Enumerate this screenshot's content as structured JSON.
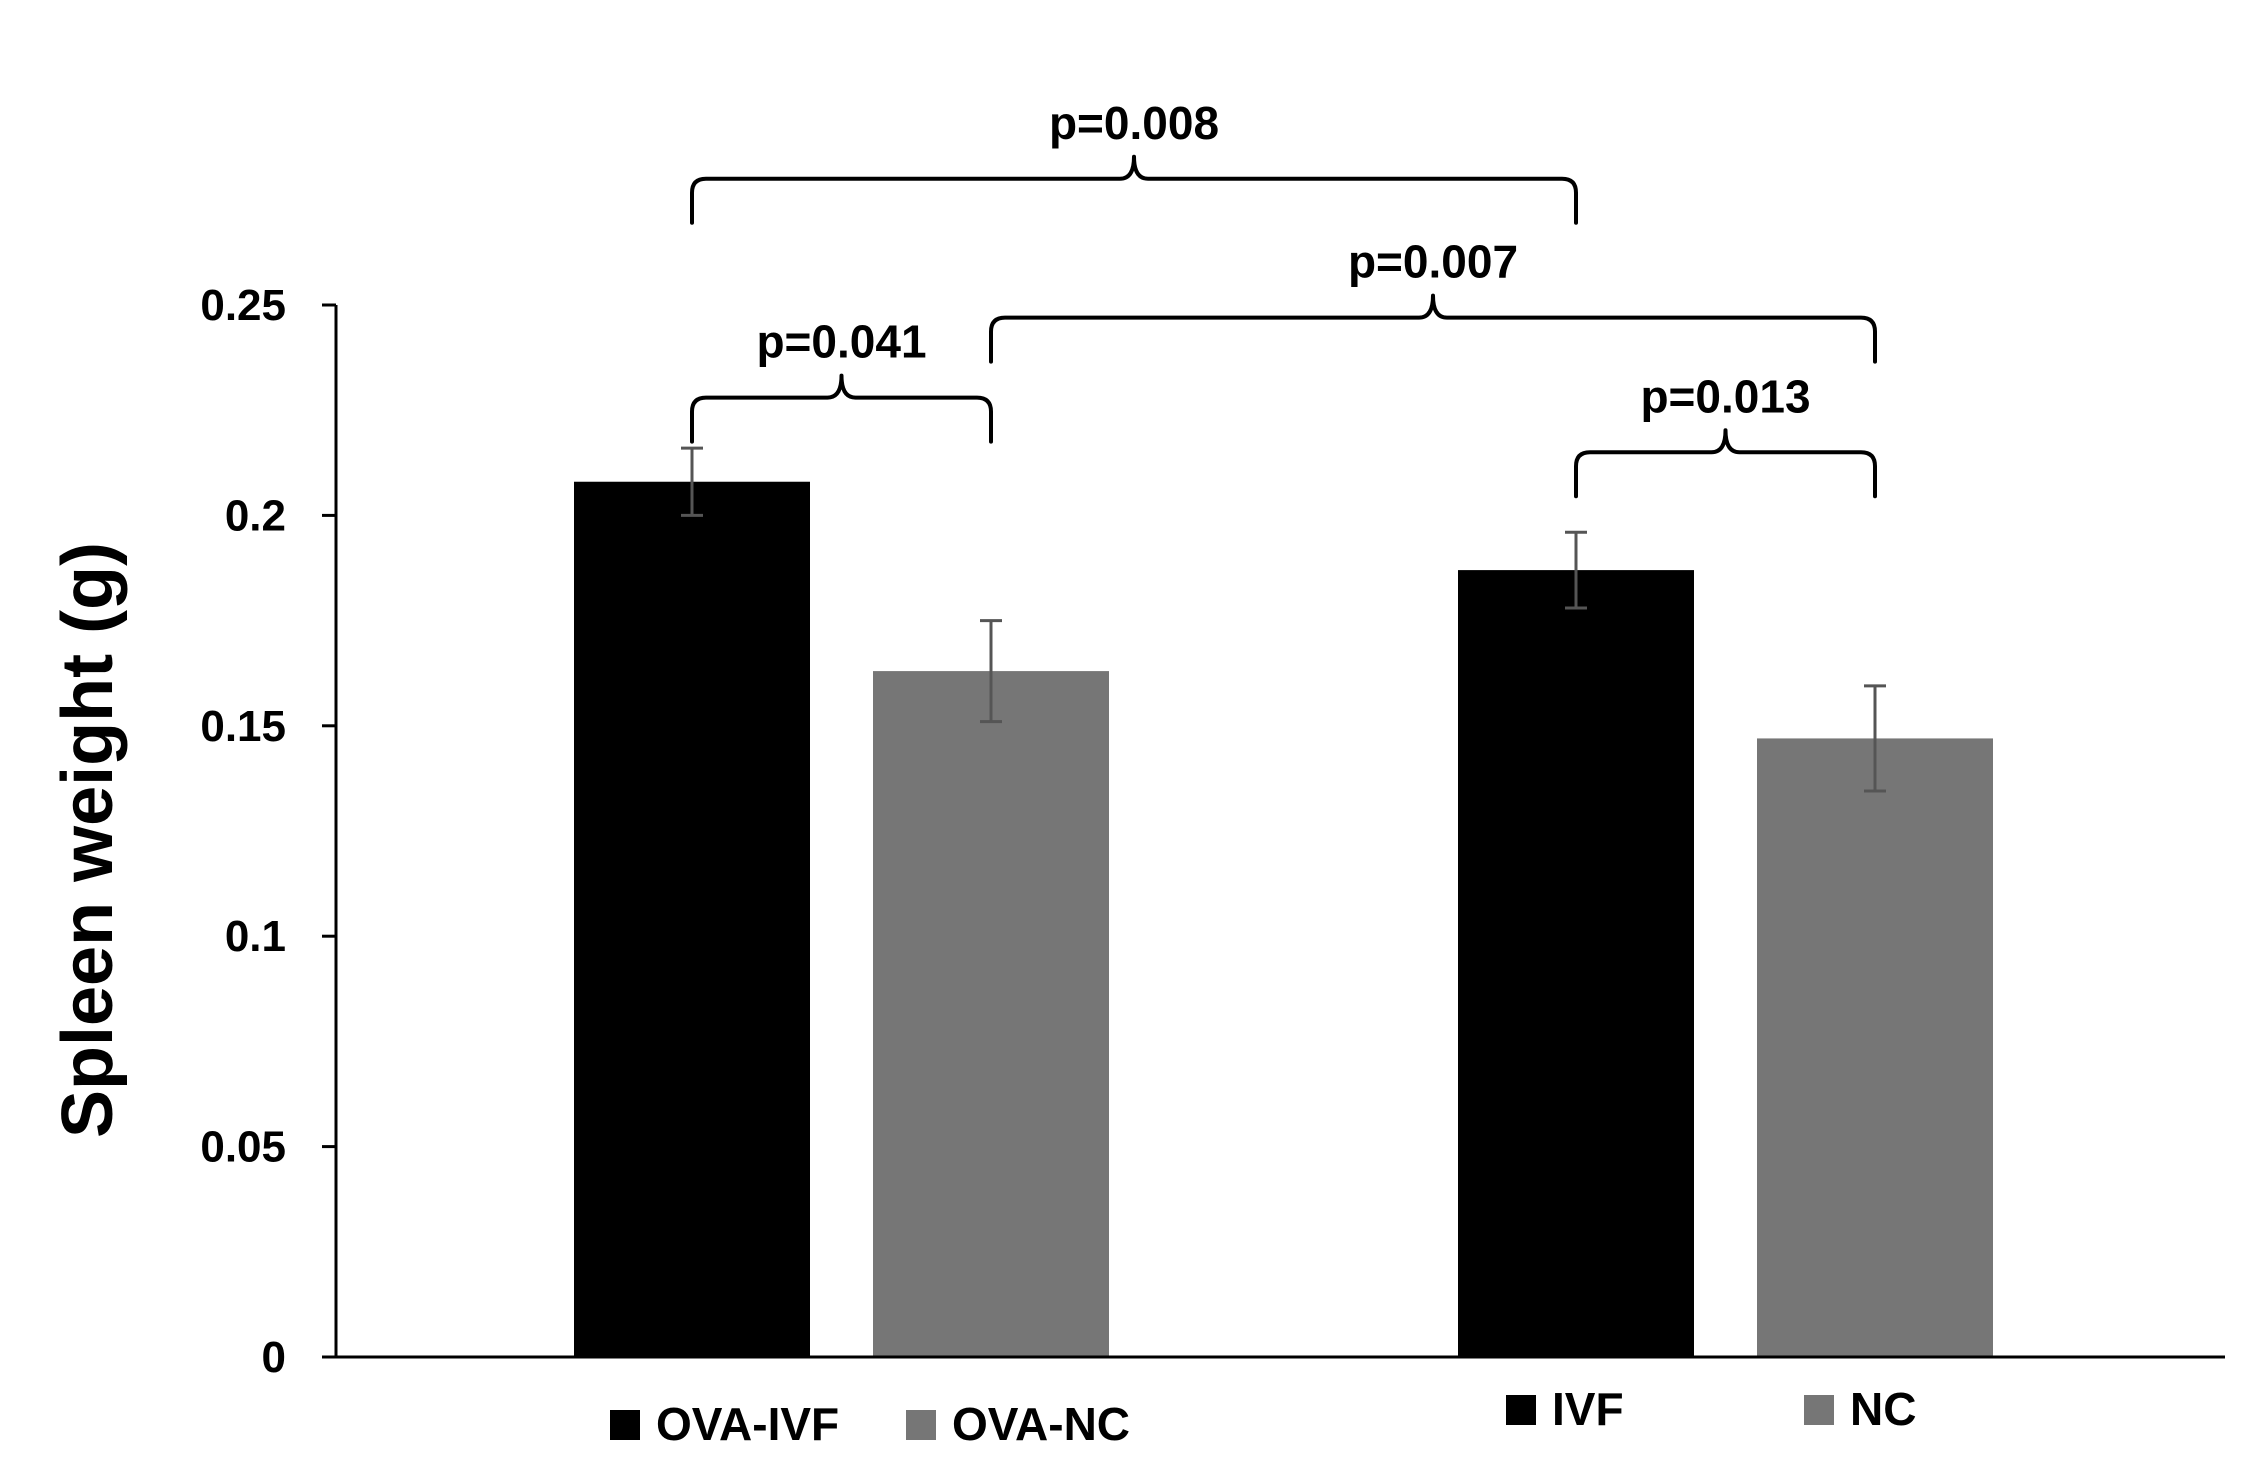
{
  "chart_data": {
    "type": "bar",
    "title": "",
    "xlabel": "",
    "ylabel": "Spleen weight (g)",
    "ylim": [
      0,
      0.25
    ],
    "yticks": [
      0,
      0.05,
      0.1,
      0.15,
      0.2,
      0.25
    ],
    "ytick_labels": [
      "0",
      "0.05",
      "0.1",
      "0.15",
      "0.2",
      "0.25"
    ],
    "grid": false,
    "categories": [
      "OVA-IVF",
      "OVA-NC",
      "IVF",
      "NC"
    ],
    "values": [
      0.208,
      0.163,
      0.187,
      0.147
    ],
    "errors": [
      0.008,
      0.012,
      0.009,
      0.0125
    ],
    "colors": [
      "#000000",
      "#767676",
      "#000000",
      "#767676"
    ],
    "error_bar_color": "#555555",
    "legend": [
      {
        "label": "OVA-IVF",
        "color": "#000000"
      },
      {
        "label": "OVA-NC",
        "color": "#767676"
      },
      {
        "label": "IVF",
        "color": "#000000"
      },
      {
        "label": "NC",
        "color": "#767676"
      }
    ],
    "legend_position": "bottom",
    "comparisons": [
      {
        "from": "OVA-IVF",
        "to": "OVA-NC",
        "label": "p=0.041",
        "level": 0.228
      },
      {
        "from": "IVF",
        "to": "NC",
        "label": "p=0.013",
        "level": 0.215
      },
      {
        "from": "OVA-NC",
        "to": "NC",
        "label": "p=0.007",
        "level": 0.247
      },
      {
        "from": "OVA-IVF",
        "to": "IVF",
        "label": "p=0.008",
        "level": 0.28
      }
    ]
  }
}
